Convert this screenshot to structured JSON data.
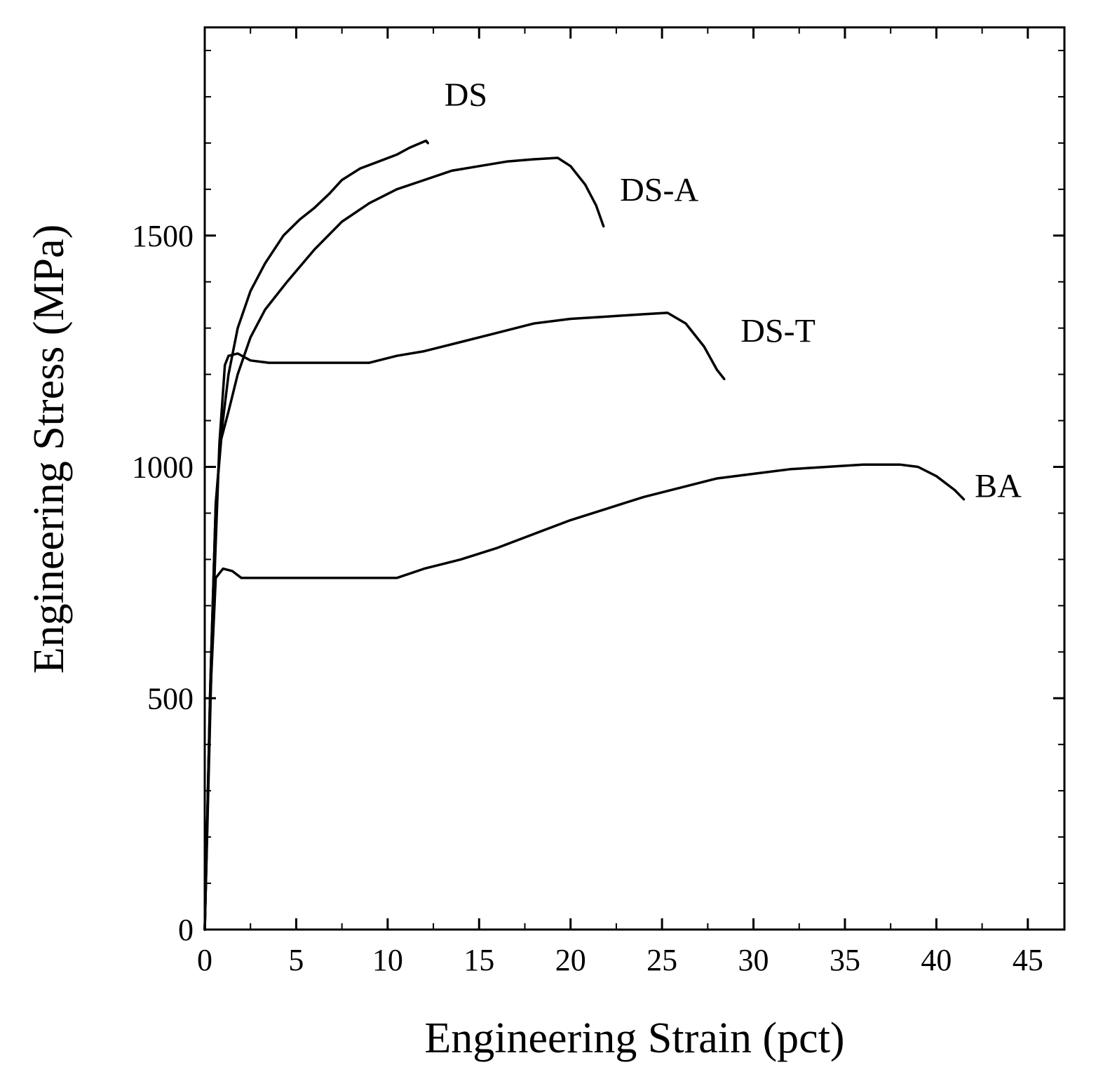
{
  "chart_data": {
    "type": "line",
    "title": "",
    "xlabel": "Engineering Strain (pct)",
    "ylabel": "Engineering Stress (MPa)",
    "xlim": [
      0,
      47
    ],
    "ylim": [
      0,
      1950
    ],
    "x_ticks": [
      0,
      5,
      10,
      15,
      20,
      25,
      30,
      35,
      40,
      45
    ],
    "y_ticks": [
      0,
      500,
      1000,
      1500
    ],
    "grid": false,
    "series": [
      {
        "name": "DS",
        "label": "DS",
        "x": [
          0,
          0.3,
          0.6,
          0.9,
          1.3,
          1.8,
          2.5,
          3.3,
          4.3,
          5.2,
          6.0,
          6.8,
          7.5,
          8.5,
          9.5,
          10.5,
          11.2,
          11.8,
          12.1,
          12.2
        ],
        "y": [
          0,
          520,
          920,
          1070,
          1200,
          1300,
          1380,
          1440,
          1500,
          1535,
          1560,
          1590,
          1620,
          1645,
          1660,
          1675,
          1690,
          1700,
          1705,
          1700
        ]
      },
      {
        "name": "DS-A",
        "label": "DS-A",
        "x": [
          0,
          0.3,
          0.6,
          0.9,
          1.3,
          1.8,
          2.5,
          3.3,
          4.5,
          6.0,
          7.5,
          9.0,
          10.5,
          12.0,
          13.5,
          15.0,
          16.5,
          18.0,
          19.3,
          20.0,
          20.8,
          21.4,
          21.8
        ],
        "y": [
          0,
          520,
          920,
          1060,
          1120,
          1200,
          1280,
          1340,
          1400,
          1470,
          1530,
          1570,
          1600,
          1620,
          1640,
          1650,
          1660,
          1665,
          1668,
          1650,
          1610,
          1565,
          1520
        ]
      },
      {
        "name": "DS-T",
        "label": "DS-T",
        "x": [
          0,
          0.4,
          0.8,
          1.1,
          1.3,
          1.8,
          2.5,
          3.5,
          5.0,
          7.0,
          9.0,
          10.5,
          12.0,
          14.0,
          16.0,
          18.0,
          20.0,
          22.0,
          24.0,
          25.3,
          26.3,
          27.3,
          28.0,
          28.4
        ],
        "y": [
          0,
          620,
          1050,
          1220,
          1240,
          1245,
          1230,
          1225,
          1225,
          1225,
          1225,
          1240,
          1250,
          1270,
          1290,
          1310,
          1320,
          1325,
          1330,
          1333,
          1310,
          1260,
          1210,
          1190
        ]
      },
      {
        "name": "BA",
        "label": "BA",
        "x": [
          0,
          0.3,
          0.6,
          1.0,
          1.5,
          2.0,
          4.0,
          7.0,
          10.5,
          12.0,
          14.0,
          16.0,
          18.0,
          20.0,
          22.0,
          24.0,
          26.0,
          28.0,
          30.0,
          32.0,
          34.0,
          36.0,
          38.0,
          39.0,
          40.0,
          41.0,
          41.5
        ],
        "y": [
          0,
          500,
          760,
          780,
          775,
          760,
          760,
          760,
          760,
          780,
          800,
          825,
          855,
          885,
          910,
          935,
          955,
          975,
          985,
          995,
          1000,
          1005,
          1005,
          1000,
          980,
          950,
          930
        ]
      }
    ],
    "annotations": [
      {
        "text": "DS",
        "x": 13.1,
        "y": 1780
      },
      {
        "text": "DS-A",
        "x": 22.7,
        "y": 1575
      },
      {
        "text": "DS-T",
        "x": 29.3,
        "y": 1270
      },
      {
        "text": "BA",
        "x": 42.1,
        "y": 935
      }
    ]
  }
}
